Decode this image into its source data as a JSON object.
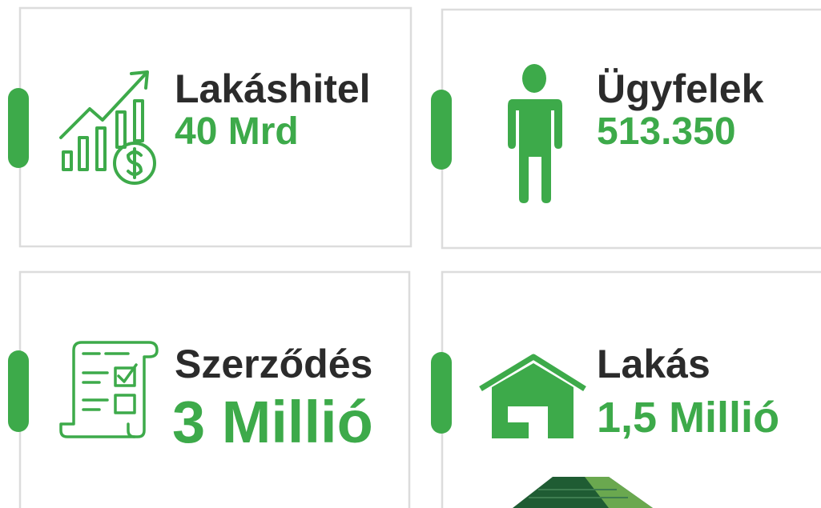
{
  "cards": [
    {
      "title": "Lakáshitel",
      "value": "40 Mrd"
    },
    {
      "title": "Ügyfelek",
      "value": "513.350"
    },
    {
      "title": "Szerződés",
      "value": "3 Millió"
    },
    {
      "title": "Lakás",
      "value": "1,5 Millió"
    }
  ]
}
